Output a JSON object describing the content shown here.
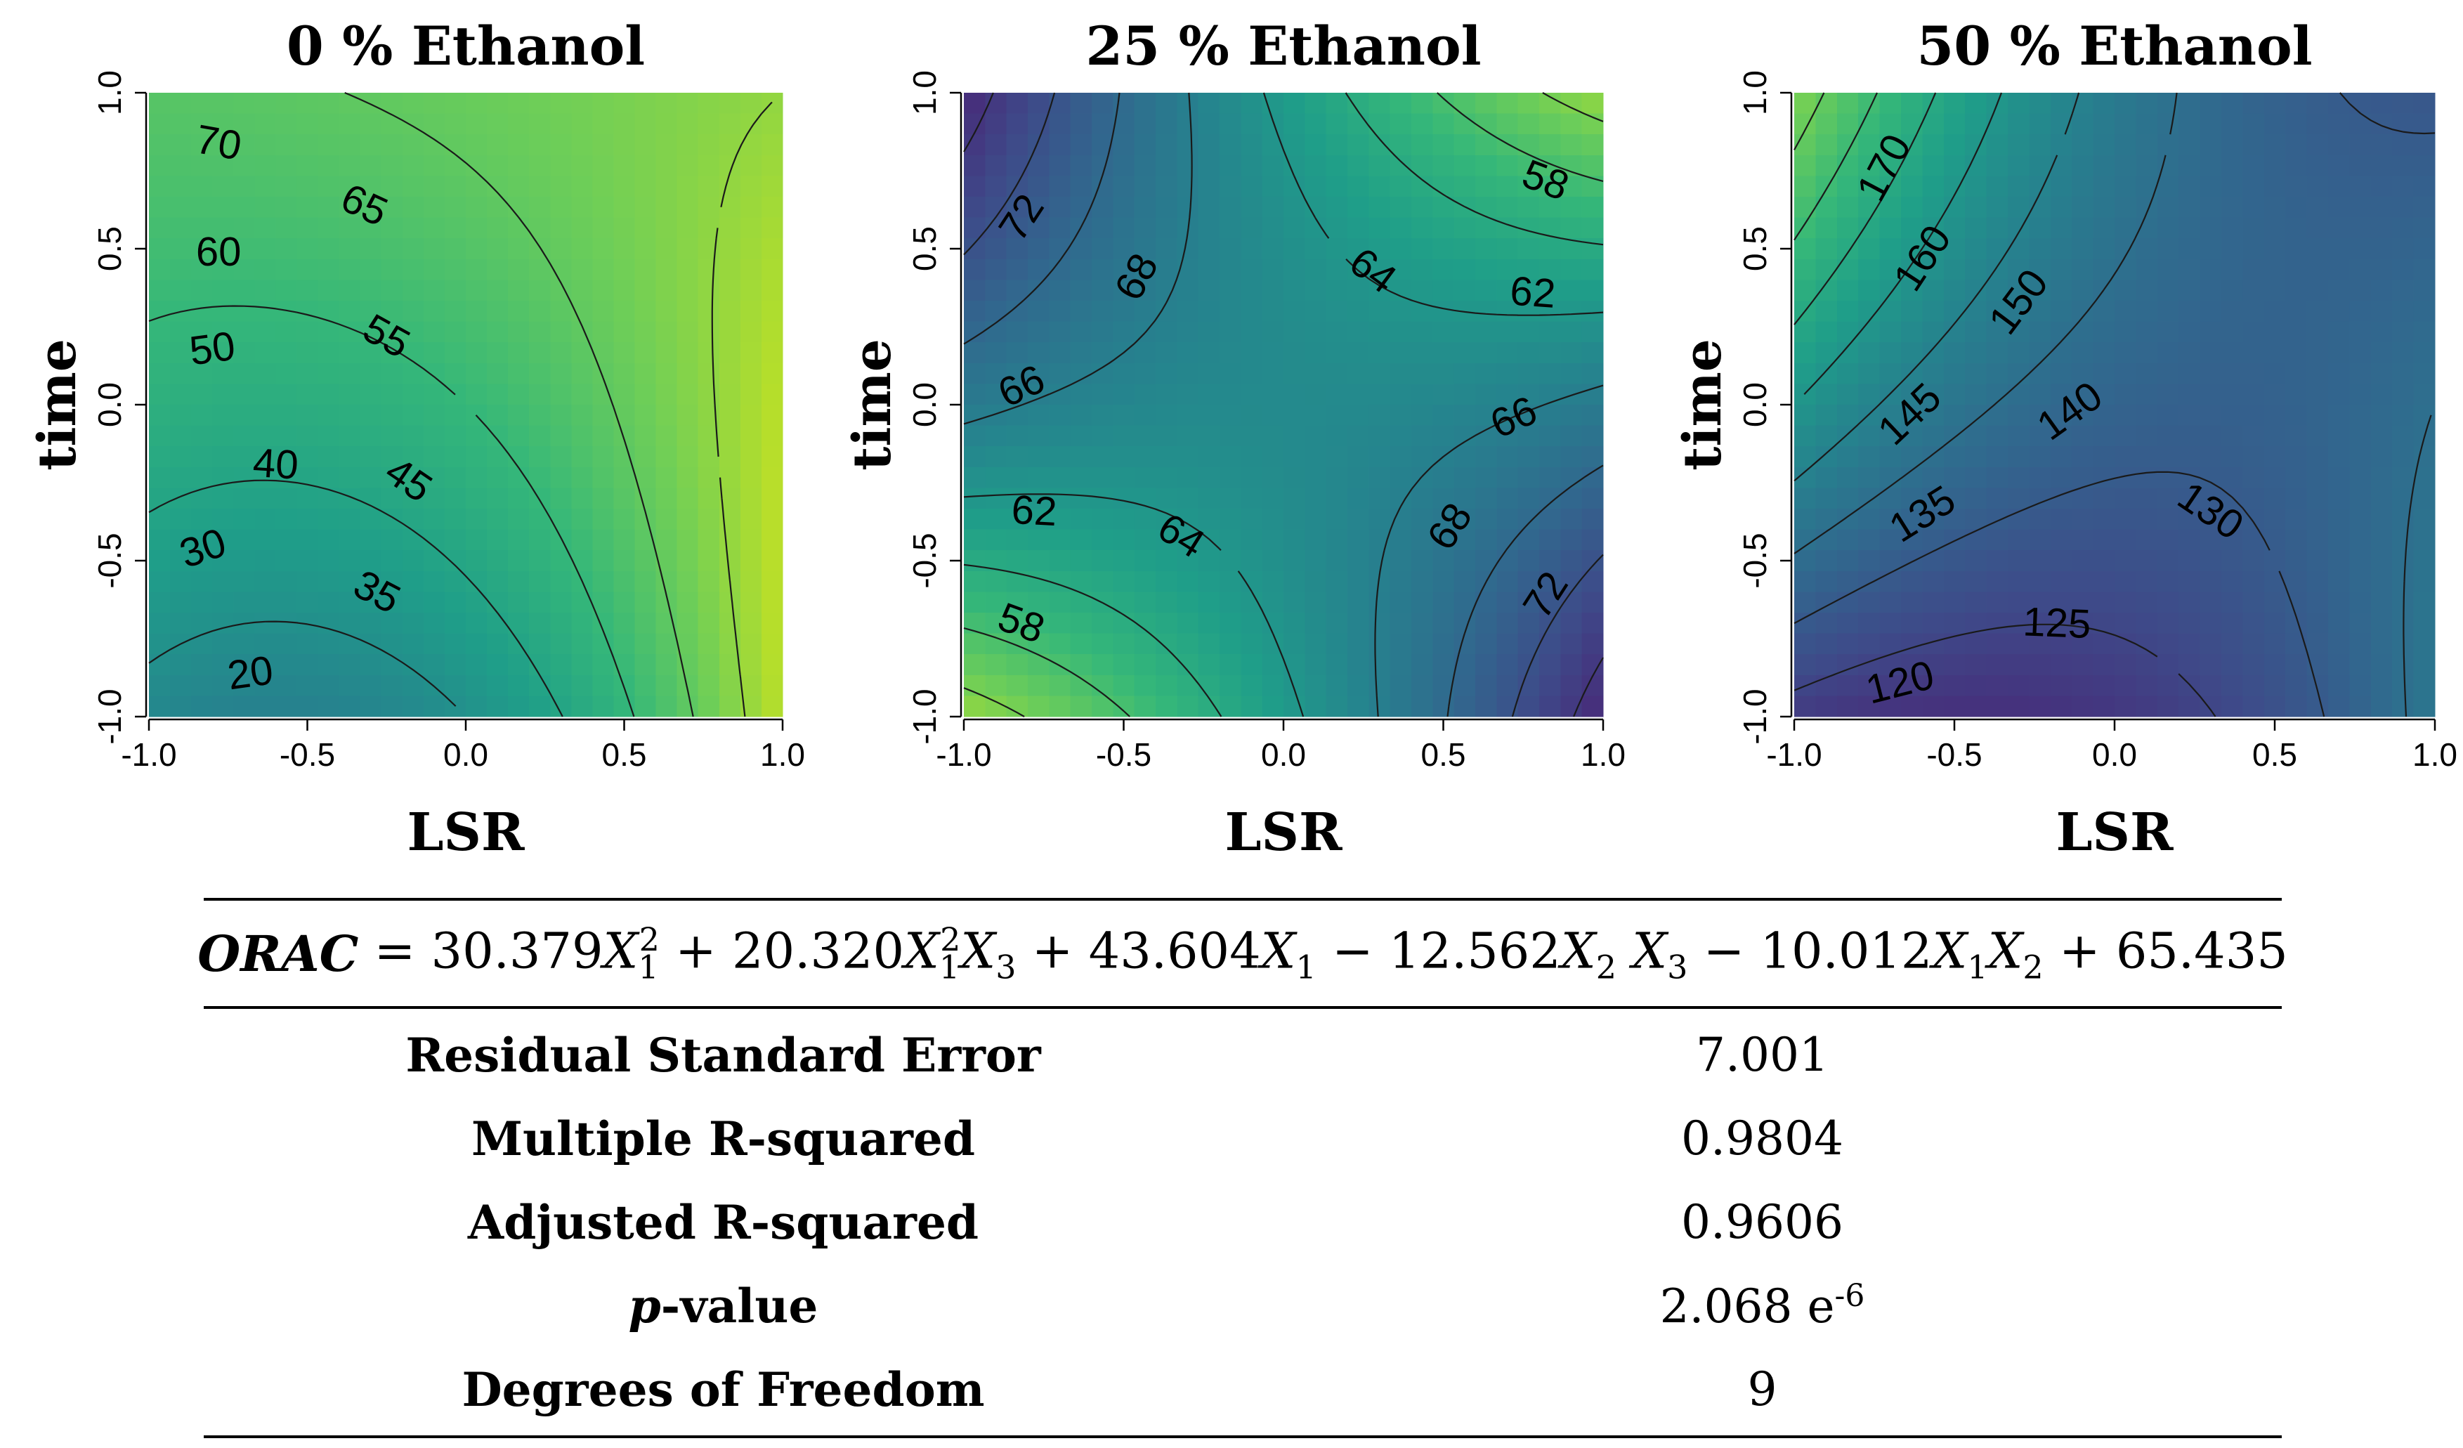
{
  "chart_data": [
    {
      "type": "heatmap",
      "title": "0 % Ethanol",
      "xlabel": "LSR",
      "ylabel": "time",
      "xlim": [
        -1.0,
        1.0
      ],
      "ylim": [
        -1.0,
        1.0
      ],
      "xticks": [
        "-1.0",
        "-0.5",
        "0.0",
        "0.5",
        "1.0"
      ],
      "yticks": [
        "-1.0",
        "-0.5",
        "0.0",
        "0.5",
        "1.0"
      ],
      "contour_levels": [
        20,
        25,
        30,
        35,
        40,
        45,
        50,
        55,
        60,
        65,
        70
      ],
      "contour_labels": [
        "70",
        "65",
        "60",
        "55",
        "50",
        "45",
        "40",
        "35",
        "30",
        "20"
      ],
      "value_range": [
        15,
        75
      ],
      "colormap": "viridis"
    },
    {
      "type": "heatmap",
      "title": "25 % Ethanol",
      "xlabel": "LSR",
      "ylabel": "time",
      "xlim": [
        -1.0,
        1.0
      ],
      "ylim": [
        -1.0,
        1.0
      ],
      "xticks": [
        "-1.0",
        "-0.5",
        "0.0",
        "0.5",
        "1.0"
      ],
      "yticks": [
        "-1.0",
        "-0.5",
        "0.0",
        "0.5",
        "1.0"
      ],
      "contour_levels": [
        56,
        58,
        60,
        62,
        64,
        66,
        68,
        70,
        72
      ],
      "contour_labels": [
        "72",
        "68",
        "66",
        "62",
        "58",
        "64",
        "62",
        "66",
        "68",
        "72",
        "64",
        "58"
      ],
      "value_range": [
        54.5,
        76.5
      ],
      "colormap": "viridis"
    },
    {
      "type": "heatmap",
      "title": "50 % Ethanol",
      "xlabel": "LSR",
      "ylabel": "time",
      "xlim": [
        -1.0,
        1.0
      ],
      "ylim": [
        -1.0,
        1.0
      ],
      "xticks": [
        "-1.0",
        "-0.5",
        "0.0",
        "0.5",
        "1.0"
      ],
      "yticks": [
        "-1.0",
        "-0.5",
        "0.0",
        "0.5",
        "1.0"
      ],
      "contour_levels": [
        120,
        125,
        130,
        135,
        140,
        145,
        150,
        155,
        160,
        165,
        170
      ],
      "contour_labels": [
        "170",
        "160",
        "150",
        "145",
        "140",
        "135",
        "130",
        "125",
        "120"
      ],
      "value_range": [
        117,
        180
      ],
      "colormap": "viridis"
    }
  ],
  "equation": {
    "lhs": "ORAC",
    "rhs": "= 30.379X₁² + 20.320X₁²X₃ + 43.604X₁ − 12.562X₂ X₃ − 10.012X₁X₂ + 65.435"
  },
  "stats": [
    {
      "label": "Residual Standard Error",
      "value": "7.001"
    },
    {
      "label": "Multiple R-squared",
      "value": "0.9804"
    },
    {
      "label": "Adjusted R-squared",
      "value": "0.9606"
    },
    {
      "label": "p-value",
      "value": "2.068 e-6"
    },
    {
      "label": "Degrees of Freedom",
      "value": "9"
    }
  ]
}
